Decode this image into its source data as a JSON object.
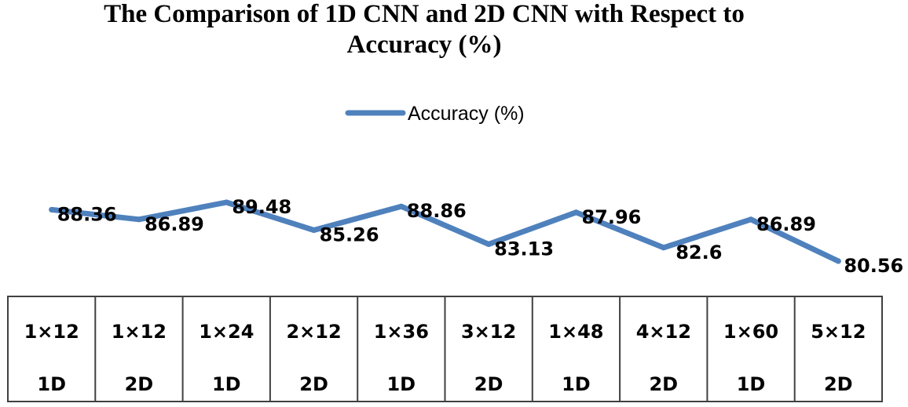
{
  "chart_data": {
    "type": "line",
    "title_lines": [
      "The Comparison of 1D CNN and 2D CNN with Respect to",
      "Accuracy (%)"
    ],
    "categories": [
      [
        "1×12",
        "1D"
      ],
      [
        "1×12",
        "2D"
      ],
      [
        "1×24",
        "1D"
      ],
      [
        "2×12",
        "2D"
      ],
      [
        "1×36",
        "1D"
      ],
      [
        "3×12",
        "2D"
      ],
      [
        "1×48",
        "1D"
      ],
      [
        "4×12",
        "2D"
      ],
      [
        "1×60",
        "1D"
      ],
      [
        "5×12",
        "2D"
      ]
    ],
    "series": [
      {
        "name": "Accuracy (%)",
        "values": [
          88.36,
          86.89,
          89.48,
          85.26,
          88.86,
          83.13,
          87.96,
          82.6,
          86.89,
          80.56
        ],
        "labels": [
          "88.36",
          "86.89",
          "89.48",
          "85.26",
          "88.86",
          "83.13",
          "87.96",
          "82.6",
          "86.89",
          "80.56"
        ]
      }
    ],
    "colors": {
      "series": "#4F81BD",
      "grid": "#404040"
    },
    "legend_position": "top",
    "category_axis": "table-below",
    "grid": false
  }
}
